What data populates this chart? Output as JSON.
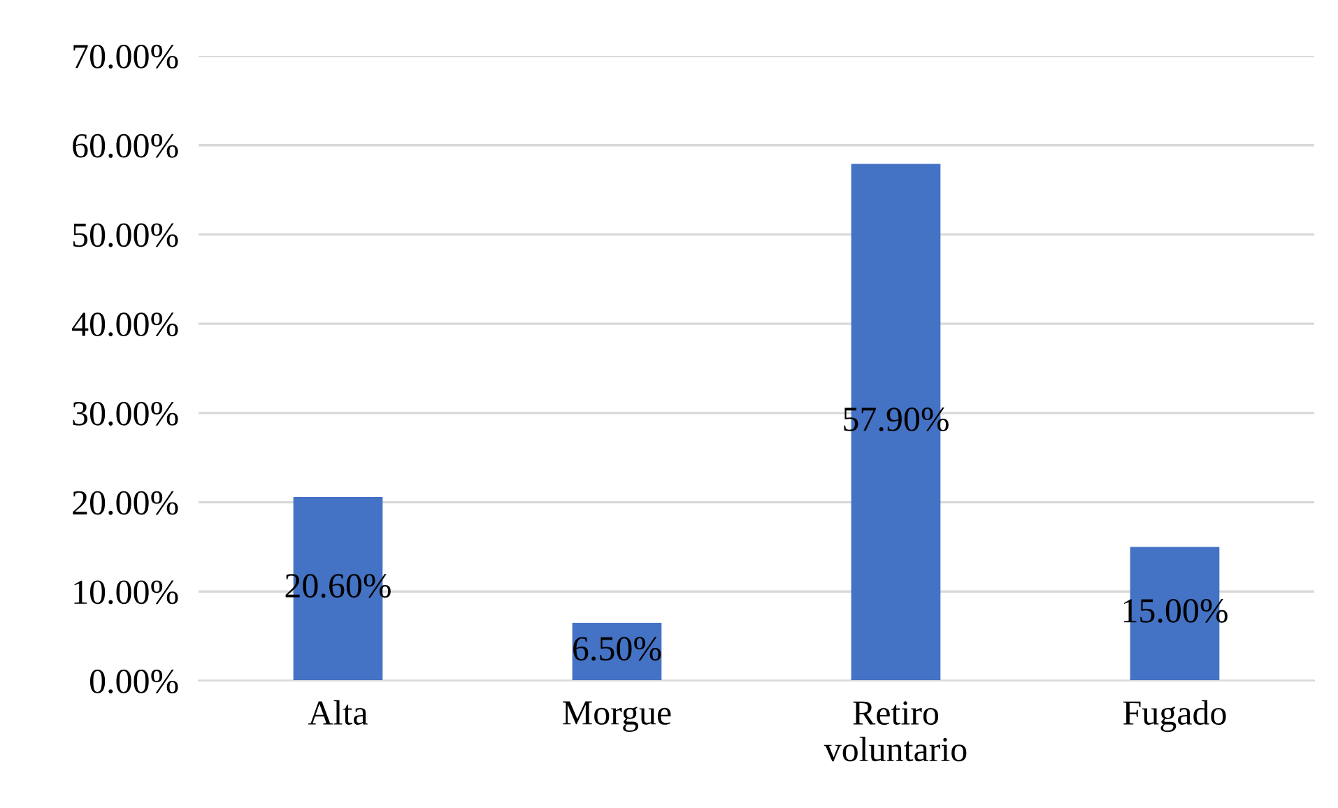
{
  "chart_data": {
    "type": "bar",
    "categories": [
      "Alta",
      "Morgue",
      "Retiro\nvoluntario",
      "Fugado"
    ],
    "values": [
      20.6,
      6.5,
      57.9,
      15.0
    ],
    "value_labels": [
      "20.60%",
      "6.50%",
      "57.90%",
      "15.00%"
    ],
    "color": "#4472c4",
    "ylim": [
      0,
      70
    ],
    "yticks": [
      {
        "value": 0,
        "label": "0.00%"
      },
      {
        "value": 10,
        "label": "10.00%"
      },
      {
        "value": 20,
        "label": "20.00%"
      },
      {
        "value": 30,
        "label": "30.00%"
      },
      {
        "value": 40,
        "label": "40.00%"
      },
      {
        "value": 50,
        "label": "50.00%"
      },
      {
        "value": 60,
        "label": "60.00%"
      },
      {
        "value": 70,
        "label": "70.00%"
      }
    ],
    "grid": "y",
    "legend": false
  }
}
